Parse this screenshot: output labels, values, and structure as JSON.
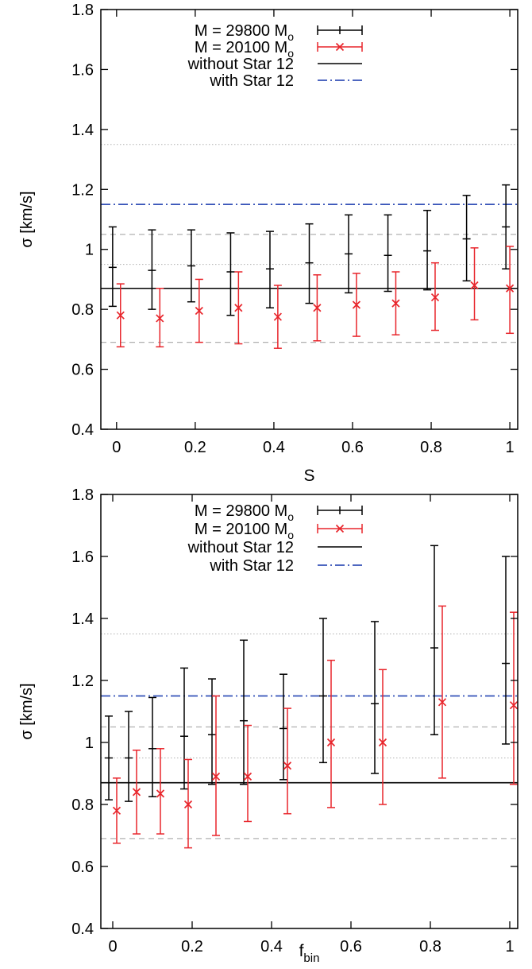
{
  "colors": {
    "black": "#000000",
    "red": "#e8252b",
    "blue": "#3552b8",
    "gray": "#b0b0b0"
  },
  "chart_data": [
    {
      "type": "scatter",
      "title": "",
      "xlabel": "S",
      "ylabel": "σ [km/s]",
      "xlim": [
        -0.04,
        1.02
      ],
      "ylim": [
        0.4,
        1.8
      ],
      "x_ticks": [
        "0",
        "0.2",
        "0.4",
        "0.6",
        "0.8",
        "1"
      ],
      "y_ticks": [
        "0.4",
        "0.6",
        "0.8",
        "1",
        "1.2",
        "1.4",
        "1.6",
        "1.8"
      ],
      "legend_position": "top",
      "grid": false,
      "series": [
        {
          "name": "M = 29800 M",
          "name_sub": "o",
          "style": "errorbar-plus",
          "color": "black",
          "x": [
            -0.01,
            0.09,
            0.19,
            0.29,
            0.39,
            0.49,
            0.59,
            0.69,
            0.79,
            0.89,
            0.99
          ],
          "y": [
            0.94,
            0.93,
            0.945,
            0.925,
            0.935,
            0.955,
            0.985,
            0.98,
            0.995,
            1.035,
            1.075
          ],
          "y_low": [
            0.81,
            0.8,
            0.825,
            0.78,
            0.805,
            0.82,
            0.855,
            0.86,
            0.865,
            0.895,
            0.935
          ],
          "y_high": [
            1.075,
            1.065,
            1.065,
            1.055,
            1.06,
            1.085,
            1.115,
            1.115,
            1.13,
            1.18,
            1.215
          ]
        },
        {
          "name": "M = 20100 M",
          "name_sub": "o",
          "style": "errorbar-cross",
          "color": "red",
          "x": [
            0.01,
            0.11,
            0.21,
            0.31,
            0.41,
            0.51,
            0.61,
            0.71,
            0.81,
            0.91,
            1.0
          ],
          "y": [
            0.78,
            0.77,
            0.795,
            0.805,
            0.775,
            0.805,
            0.815,
            0.82,
            0.84,
            0.88,
            0.87
          ],
          "y_low": [
            0.675,
            0.675,
            0.69,
            0.685,
            0.67,
            0.695,
            0.71,
            0.715,
            0.73,
            0.765,
            0.72
          ],
          "y_high": [
            0.885,
            0.87,
            0.9,
            0.925,
            0.88,
            0.915,
            0.92,
            0.925,
            0.955,
            1.005,
            1.01
          ]
        },
        {
          "name": "without Star 12",
          "style": "hline-solid",
          "color": "black",
          "y": 0.87
        },
        {
          "name": "with Star 12",
          "style": "hline-dashdot",
          "color": "blue",
          "y": 1.15
        }
      ],
      "reference_lines": [
        {
          "style": "dashed",
          "y": 0.69
        },
        {
          "style": "dashed",
          "y": 1.05
        },
        {
          "style": "dotted",
          "y": 0.95
        },
        {
          "style": "dotted",
          "y": 1.35
        }
      ]
    },
    {
      "type": "scatter",
      "title": "",
      "xlabel": "f",
      "xlabel_sub": "bin",
      "ylabel": "σ [km/s]",
      "xlim": [
        -0.03,
        1.02
      ],
      "ylim": [
        0.4,
        1.8
      ],
      "x_ticks": [
        "0",
        "0.2",
        "0.4",
        "0.6",
        "0.8",
        "1"
      ],
      "y_ticks": [
        "0.4",
        "0.6",
        "0.8",
        "1",
        "1.2",
        "1.4",
        "1.6",
        "1.8"
      ],
      "legend_position": "top",
      "grid": false,
      "series": [
        {
          "name": "M = 29800 M",
          "name_sub": "o",
          "style": "errorbar-plus",
          "color": "black",
          "x": [
            -0.01,
            0.04,
            0.1,
            0.18,
            0.25,
            0.33,
            0.43,
            0.53,
            0.66,
            0.81,
            0.99
          ],
          "y": [
            0.95,
            0.95,
            0.98,
            1.02,
            1.025,
            1.07,
            1.045,
            1.15,
            1.125,
            1.305,
            1.255
          ],
          "y_low": [
            0.815,
            0.81,
            0.825,
            0.85,
            0.865,
            0.865,
            0.88,
            0.935,
            0.9,
            1.025,
            0.995
          ],
          "y_high": [
            1.085,
            1.1,
            1.145,
            1.24,
            1.205,
            1.33,
            1.22,
            1.4,
            1.39,
            1.635,
            1.6
          ]
        },
        {
          "name": "M = 20100 M",
          "name_sub": "o",
          "style": "errorbar-cross",
          "color": "red",
          "x": [
            0.01,
            0.06,
            0.12,
            0.19,
            0.26,
            0.34,
            0.44,
            0.55,
            0.68,
            0.83,
            1.01
          ],
          "y": [
            0.78,
            0.84,
            0.835,
            0.8,
            0.89,
            0.89,
            0.925,
            1.0,
            1.0,
            1.13,
            1.12
          ],
          "y_low": [
            0.675,
            0.705,
            0.705,
            0.66,
            0.7,
            0.745,
            0.77,
            0.79,
            0.8,
            0.885,
            0.865
          ],
          "y_high": [
            0.885,
            0.975,
            0.98,
            0.945,
            1.15,
            1.055,
            1.11,
            1.265,
            1.235,
            1.44,
            1.42
          ]
        },
        {
          "name": "without Star 12",
          "style": "hline-solid",
          "color": "black",
          "y": 0.87
        },
        {
          "name": "with Star 12",
          "style": "hline-dashdot",
          "color": "blue",
          "y": 1.15
        }
      ],
      "reference_lines": [
        {
          "style": "dashed",
          "y": 0.69
        },
        {
          "style": "dashed",
          "y": 1.05
        },
        {
          "style": "dotted",
          "y": 0.95
        },
        {
          "style": "dotted",
          "y": 1.35
        }
      ]
    }
  ]
}
